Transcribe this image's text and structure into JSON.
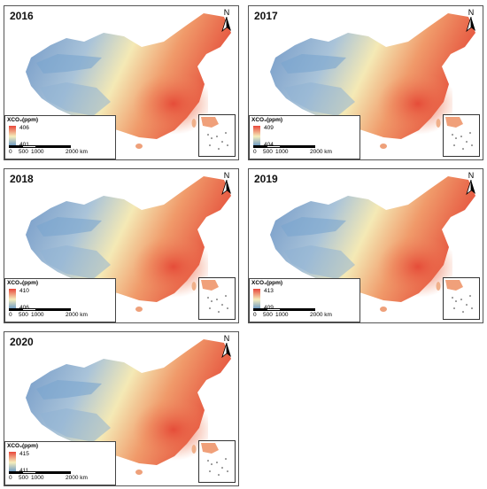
{
  "legend_title": "XCO₂(ppm)",
  "scale_labels": [
    "0",
    "500",
    "1000",
    "2000 km"
  ],
  "north_label": "N",
  "colors": {
    "high": "#e8463a",
    "mid": "#f6eebb",
    "low": "#5a8fc8"
  },
  "panels": [
    {
      "year": "2016",
      "legend_high": "406",
      "legend_low": "401"
    },
    {
      "year": "2017",
      "legend_high": "409",
      "legend_low": "404"
    },
    {
      "year": "2018",
      "legend_high": "410",
      "legend_low": "406"
    },
    {
      "year": "2019",
      "legend_high": "413",
      "legend_low": "409"
    },
    {
      "year": "2020",
      "legend_high": "415",
      "legend_low": "411"
    }
  ]
}
